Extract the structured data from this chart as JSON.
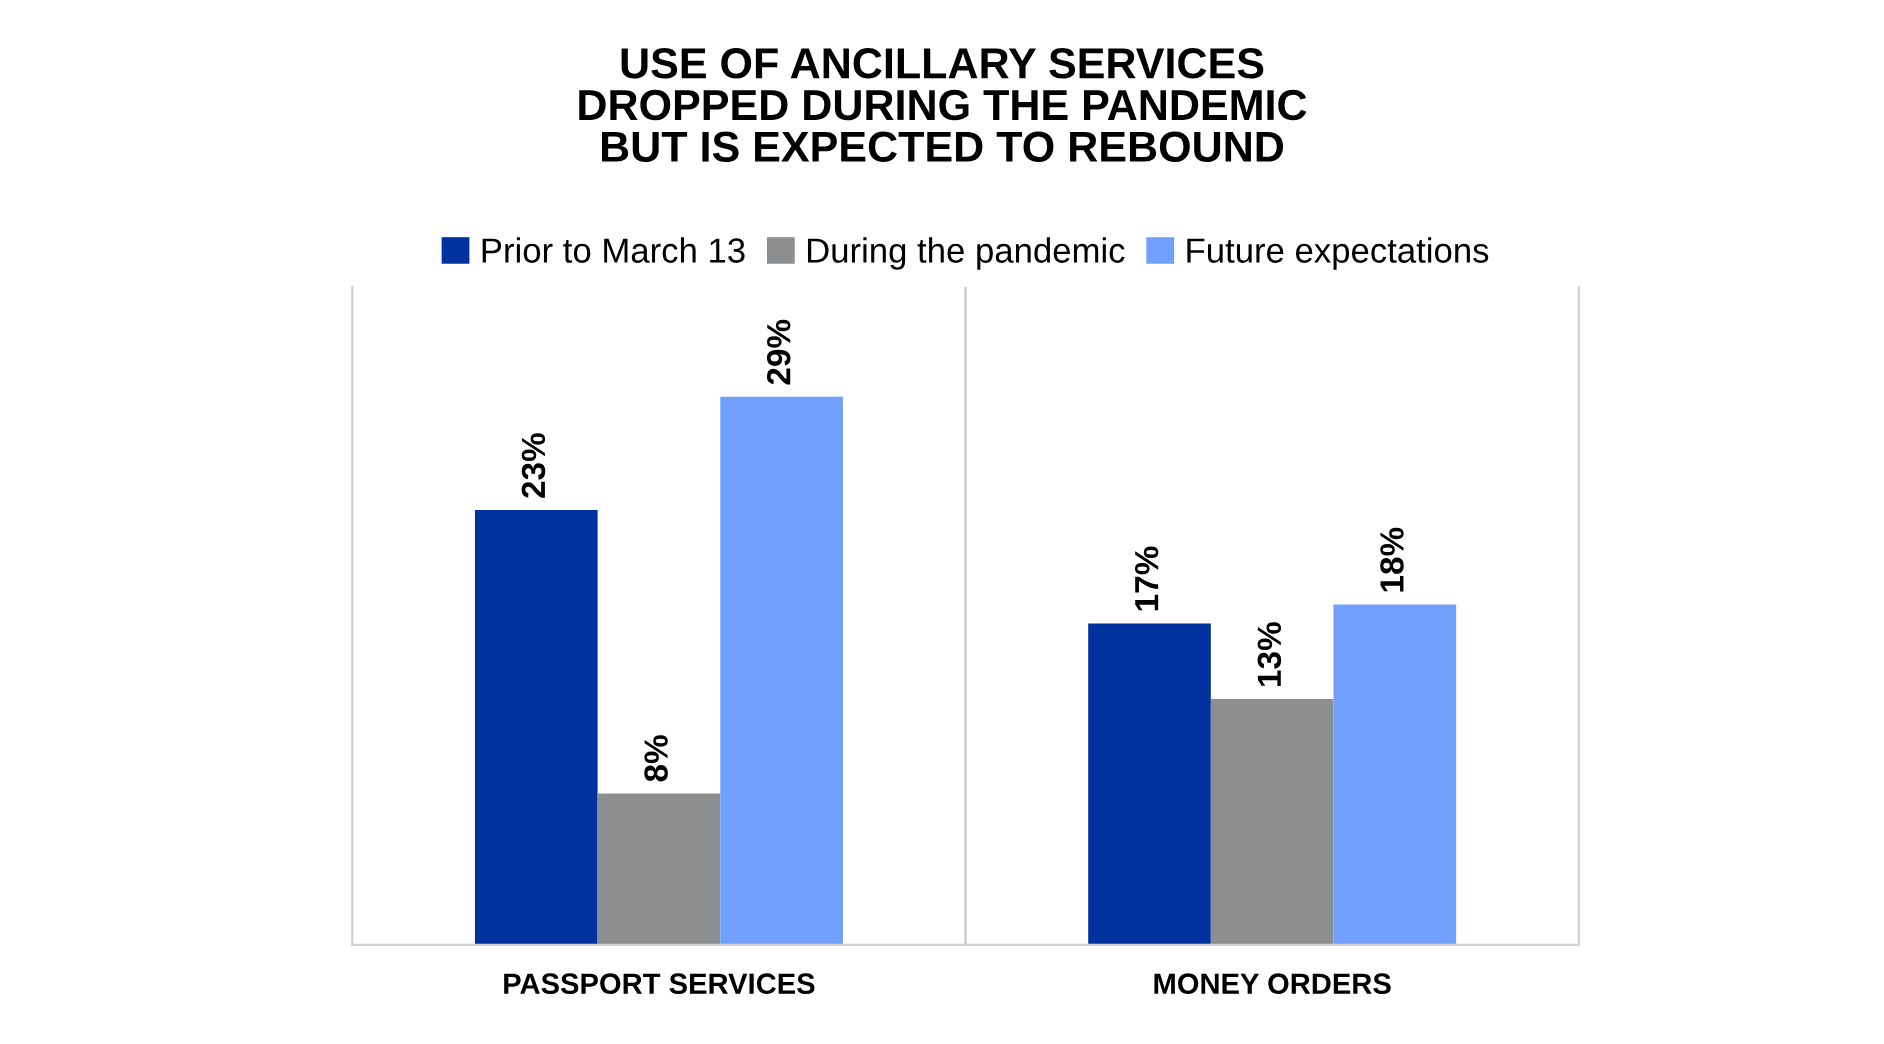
{
  "chart_data": {
    "type": "bar",
    "title": "USE OF ANCILLARY SERVICES\nDROPPED DURING THE PANDEMIC\nBUT IS EXPECTED TO REBOUND",
    "categories": [
      "PASSPORT SERVICES",
      "MONEY ORDERS"
    ],
    "series": [
      {
        "name": "Prior to March 13",
        "color": "#00339f",
        "values": [
          23,
          17
        ],
        "value_labels": [
          "23%",
          "17%"
        ]
      },
      {
        "name": "During the pandemic",
        "color": "#8c8e90",
        "values": [
          8,
          13
        ],
        "value_labels": [
          "8%",
          "13%"
        ]
      },
      {
        "name": "Future expectations",
        "color": "#70a0fc",
        "values": [
          29,
          18
        ],
        "value_labels": [
          "29%",
          "18%"
        ]
      }
    ],
    "legend": "top",
    "grid": false
  }
}
